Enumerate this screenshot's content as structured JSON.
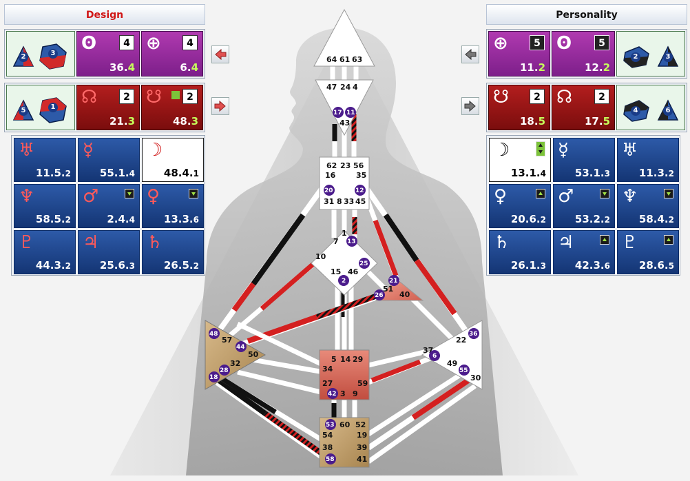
{
  "design": {
    "title": "Design",
    "title_color": "#d01515",
    "nodes_group1": {
      "a": "2",
      "b": "3"
    },
    "nodes_group2": {
      "a": "5",
      "b": "1"
    },
    "nodes": [
      {
        "sym": "ʘ",
        "line": "4",
        "value": "36.",
        "hi": "4"
      },
      {
        "sym": "⊕",
        "line": "4",
        "value": "6.",
        "hi": "4"
      },
      {
        "sym": "☊",
        "line": "2",
        "value": "21.",
        "hi": "3"
      },
      {
        "sym": "☋",
        "line": "2",
        "value": "48.",
        "hi": "3"
      }
    ],
    "planets": [
      {
        "sym": "♅",
        "value": "11.5.",
        "sub": "2",
        "style": "blue",
        "color": "#ff5a5a"
      },
      {
        "sym": "☿",
        "value": "55.1.",
        "sub": "4",
        "style": "blue",
        "color": "#ff5a5a"
      },
      {
        "sym": "☽",
        "value": "48.4.",
        "sub": "1",
        "style": "white",
        "color": "#d01515"
      },
      {
        "sym": "♆",
        "value": "58.5.",
        "sub": "2",
        "style": "blue",
        "color": "#ff5a5a"
      },
      {
        "sym": "♂",
        "value": "2.4.",
        "sub": "4",
        "style": "blue",
        "color": "#ff5a5a",
        "badge": "down"
      },
      {
        "sym": "♀",
        "value": "13.3.",
        "sub": "6",
        "style": "blue",
        "color": "#ff5a5a",
        "badge": "down"
      },
      {
        "sym": "♇",
        "value": "44.3.",
        "sub": "2",
        "style": "blue",
        "color": "#ff5a5a"
      },
      {
        "sym": "♃",
        "value": "25.6.",
        "sub": "3",
        "style": "blue",
        "color": "#ff5a5a"
      },
      {
        "sym": "♄",
        "value": "26.5.",
        "sub": "2",
        "style": "blue",
        "color": "#ff5a5a"
      }
    ]
  },
  "personality": {
    "title": "Personality",
    "nodes_group1": {
      "a": "2",
      "b": "3"
    },
    "nodes_group2": {
      "a": "4",
      "b": "6"
    },
    "nodes": [
      {
        "sym": "⊕",
        "line": "5",
        "value": "11.",
        "hi": "2"
      },
      {
        "sym": "ʘ",
        "line": "5",
        "value": "12.",
        "hi": "2"
      },
      {
        "sym": "☋",
        "line": "2",
        "value": "18.",
        "hi": "5"
      },
      {
        "sym": "☊",
        "line": "2",
        "value": "17.",
        "hi": "5"
      }
    ],
    "planets": [
      {
        "sym": "☽",
        "value": "13.1.",
        "sub": "4",
        "style": "white",
        "color": "#000000",
        "badge": "updown"
      },
      {
        "sym": "☿",
        "value": "53.1.",
        "sub": "3",
        "style": "blue",
        "color": "#ffffff"
      },
      {
        "sym": "♅",
        "value": "11.3.",
        "sub": "2",
        "style": "blue",
        "color": "#ffffff"
      },
      {
        "sym": "♀",
        "value": "20.6.",
        "sub": "2",
        "style": "blue",
        "color": "#ffffff",
        "badge": "up"
      },
      {
        "sym": "♂",
        "value": "53.2.",
        "sub": "2",
        "style": "blue",
        "color": "#ffffff",
        "badge": "down"
      },
      {
        "sym": "♆",
        "value": "58.4.",
        "sub": "2",
        "style": "blue",
        "color": "#ffffff",
        "badge": "down"
      },
      {
        "sym": "♄",
        "value": "26.1.",
        "sub": "3",
        "style": "blue",
        "color": "#ffffff"
      },
      {
        "sym": "♃",
        "value": "42.3.",
        "sub": "6",
        "style": "blue",
        "color": "#ffffff",
        "badge": "up"
      },
      {
        "sym": "♇",
        "value": "28.6.",
        "sub": "5",
        "style": "blue",
        "color": "#ffffff",
        "badge": "up"
      }
    ]
  },
  "bodygraph": {
    "head": [
      "64",
      "61",
      "63"
    ],
    "ajna_top": [
      "47",
      "24",
      "4"
    ],
    "ajna_bottom": "43",
    "ajna_dots": [
      "17",
      "11"
    ],
    "throat": [
      "62",
      "23",
      "56",
      "16",
      "35",
      "31",
      "8",
      "33",
      "45"
    ],
    "throat_dots": [
      "20",
      "12"
    ],
    "g_center": [
      "1",
      "7",
      "10",
      "15",
      "46"
    ],
    "g_dots": [
      "13",
      "25",
      "2"
    ],
    "ego": [
      "51",
      "40"
    ],
    "ego_dots": [
      "21",
      "26"
    ],
    "spleen": [
      "57",
      "50",
      "32"
    ],
    "spleen_dots": [
      "48",
      "44",
      "28",
      "18"
    ],
    "solar": [
      "37",
      "22",
      "49",
      "30"
    ],
    "solar_dots": [
      "36",
      "6",
      "55"
    ],
    "sacral": [
      "5",
      "14",
      "29",
      "34",
      "27",
      "59",
      "3",
      "9"
    ],
    "sacral_dots": [
      "42"
    ],
    "root": [
      "60",
      "52",
      "54",
      "19",
      "38",
      "39",
      "41"
    ],
    "root_dots": [
      "53",
      "58"
    ]
  },
  "colors": {
    "design_red": "#d01515",
    "defined_center_sacral": "#d9655a",
    "defined_center_spleen": "#c9a56a",
    "channel_red": "#d42020",
    "channel_black": "#111111"
  }
}
